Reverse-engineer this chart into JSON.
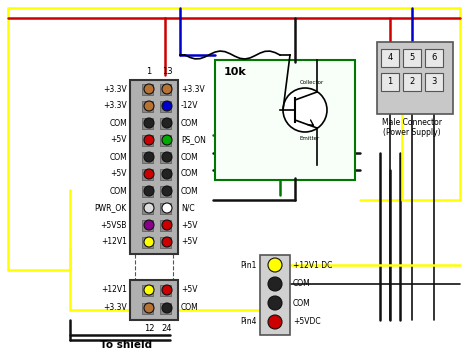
{
  "bg_color": "#ffffff",
  "connector_left_labels_left": [
    "+3.3V",
    "+3.3V",
    "COM",
    "+5V",
    "COM",
    "+5V",
    "COM",
    "PWR_OK",
    "+5VSB",
    "+12V1"
  ],
  "connector_left_labels_right": [
    "+3.3V",
    "-12V",
    "COM",
    "PS_ON",
    "COM",
    "COM",
    "COM",
    "N/C",
    "+5V",
    "+5V"
  ],
  "connector_bottom_labels_left": [
    "+12V1",
    "+3.3V"
  ],
  "connector_bottom_labels_right": [
    "+5V",
    "COM"
  ],
  "pin_labels_right": [
    "+12V1 DC",
    "COM",
    "COM",
    "+5VDC"
  ],
  "wire_yellow": "#ffff00",
  "wire_red": "#cc0000",
  "wire_blue": "#0000cc",
  "wire_black": "#111111",
  "wire_green": "#007700",
  "resistor_label": "10k",
  "male_connector_label": "Male Connector\n(Power Supply)",
  "to_shield_label": "To shield",
  "left_col_colors": [
    "#b87333",
    "#b87333",
    "#222222",
    "#cc0000",
    "#222222",
    "#cc0000",
    "#222222",
    "#dddddd",
    "#880088",
    "#ffff00"
  ],
  "right_col_colors": [
    "#b87333",
    "#0000cc",
    "#222222",
    "#00aa00",
    "#222222",
    "#222222",
    "#222222",
    "#ffffff",
    "#cc0000",
    "#cc0000"
  ],
  "bot_left_colors": [
    "#ffff00",
    "#b87333"
  ],
  "bot_right_colors": [
    "#cc0000",
    "#222222"
  ],
  "pin_conn_colors": [
    "#ffff00",
    "#222222",
    "#222222",
    "#cc0000"
  ]
}
